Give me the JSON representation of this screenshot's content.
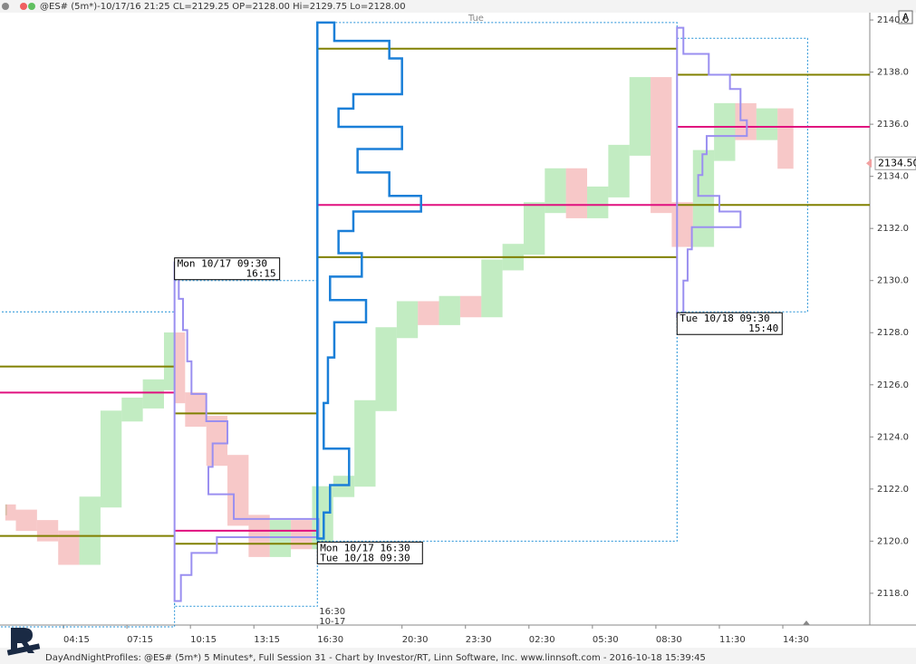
{
  "chart_data": {
    "type": "price",
    "title": "@ES# (5m*)-10/17/16 21:25 CL=2129.25 OP=2128.00 Hi=2129.75 Lo=2128.00",
    "footer": "DayAndNightProfiles: @ES# (5m*) 5 Minutes*, Full Session 31 - Chart by Investor/RT, Linn Software, Inc. www.linnsoft.com - 2016-10-18 15:39:45",
    "button": "A",
    "xlim": [
      1.25,
      42.36
    ],
    "ylim": [
      2116.78,
      2140.28
    ],
    "xticks": [
      {
        "value": 4.25,
        "label": "04:15"
      },
      {
        "value": 7.25,
        "label": "07:15"
      },
      {
        "value": 10.25,
        "label": "10:15"
      },
      {
        "value": 13.25,
        "label": "13:15"
      },
      {
        "value": 16.25,
        "label": "16:30"
      },
      {
        "value": 20.25,
        "label": "20:30"
      },
      {
        "value": 23.25,
        "label": "23:30"
      },
      {
        "value": 26.25,
        "label": "02:30"
      },
      {
        "value": 29.25,
        "label": "05:30"
      },
      {
        "value": 32.25,
        "label": "08:30"
      },
      {
        "value": 35.25,
        "label": "11:30"
      },
      {
        "value": 38.25,
        "label": "14:30"
      }
    ],
    "session_marker": {
      "value": 16.25,
      "label": "16:30",
      "date": "10-17"
    },
    "day_marker": {
      "value": 23.75,
      "label": "Tue"
    },
    "yticks": [
      {
        "value": 2118,
        "label": "2118.0"
      },
      {
        "value": 2120,
        "label": "2120.0"
      },
      {
        "value": 2122,
        "label": "2122.0"
      },
      {
        "value": 2124,
        "label": "2124.0"
      },
      {
        "value": 2126,
        "label": "2126.0"
      },
      {
        "value": 2128,
        "label": "2128.0"
      },
      {
        "value": 2130,
        "label": "2130.0"
      },
      {
        "value": 2132,
        "label": "2132.0"
      },
      {
        "value": 2134,
        "label": "2134.0"
      },
      {
        "value": 2136,
        "label": "2136.0"
      },
      {
        "value": 2138,
        "label": "2138.0"
      },
      {
        "value": 2140,
        "label": "2140.0"
      }
    ],
    "last_price": {
      "value": 2134.5,
      "label": "2134.50",
      "color": "#f2a0a0"
    },
    "up_color": "#8fdc8f",
    "down_color": "#f09a9a",
    "x": [
      1.5,
      2,
      3,
      4,
      5,
      6,
      7,
      8,
      9,
      9.5,
      10,
      11,
      12,
      13,
      14,
      15,
      16,
      17,
      18,
      19,
      20,
      21,
      22,
      23,
      24,
      25,
      26,
      27,
      28,
      29,
      30,
      31,
      32,
      33,
      34,
      35,
      36,
      37,
      38,
      38.75
    ],
    "values": [
      2121.2,
      2121.0,
      2120.6,
      2120.2,
      2119.3,
      2121.5,
      2124.8,
      2125.3,
      2126.0,
      2127.8,
      2125.5,
      2124.6,
      2123.1,
      2120.8,
      2119.6,
      2120.6,
      2119.9,
      2121.9,
      2122.3,
      2125.2,
      2128.0,
      2129.0,
      2128.5,
      2129.2,
      2128.8,
      2130.6,
      2131.2,
      2132.8,
      2134.1,
      2132.6,
      2133.4,
      2135.0,
      2137.6,
      2132.8,
      2131.5,
      2134.8,
      2136.6,
      2135.6,
      2136.4,
      2134.5
    ],
    "profiles": [
      {
        "x_end": 9.5,
        "top": 2128.8,
        "levels": [
          {
            "value": 2126.7,
            "color": "#808000"
          },
          {
            "value": 2125.7,
            "color": "#e0107f"
          },
          {
            "value": 2120.2,
            "color": "#808000"
          }
        ]
      },
      {
        "x_start": 9.5,
        "x_end": 16.25,
        "top": 2130.0,
        "bottom": 2117.5,
        "label": [
          "Mon 10/17 09:30",
          "16:15"
        ],
        "label_position": "top",
        "levels": [
          {
            "value": 2124.9,
            "color": "#808000"
          },
          {
            "value": 2120.4,
            "color": "#e0107f"
          },
          {
            "value": 2119.9,
            "color": "#808000"
          }
        ],
        "outline": {
          "color": "#9a8ff0",
          "prices": [
            2130.0,
            2128.6,
            2127.6,
            2126.2,
            2125.1,
            2124.1,
            2123.4,
            2122.3,
            2121.3,
            2120.4,
            2119.9,
            2119.2,
            2118.2
          ],
          "widths": [
            0.2,
            0.4,
            0.6,
            0.8,
            1.5,
            2.5,
            1.8,
            1.6,
            2.8,
            6.8,
            2.0,
            0.8,
            0.3
          ]
        }
      },
      {
        "x_start": 16.25,
        "x_end": 33.25,
        "top": 2139.9,
        "bottom": 2120.0,
        "label": [
          "Mon 10/17 16:30",
          "Tue 10/18 09:30"
        ],
        "label_position": "bottom",
        "levels": [
          {
            "value": 2138.9,
            "color": "#808000"
          },
          {
            "value": 2132.9,
            "color": "#e0107f"
          },
          {
            "value": 2130.9,
            "color": "#808000"
          }
        ],
        "outline": {
          "color": "#1a7fd8",
          "prices": [
            2139.55,
            2138.85,
            2138.2,
            2137.5,
            2136.8,
            2136.4,
            2135.4,
            2134.7,
            2133.6,
            2132.9,
            2132.4,
            2131.4,
            2130.7,
            2129.6,
            2128.9,
            2127.9,
            2126.2,
            2124.4,
            2122.7,
            2121.6,
            2120.6
          ],
          "widths": [
            0.8,
            3.4,
            4.0,
            4.0,
            1.7,
            1.0,
            4.0,
            1.9,
            3.4,
            4.9,
            1.7,
            1.0,
            2.1,
            0.6,
            2.3,
            0.8,
            0.5,
            0.3,
            1.5,
            0.6,
            0.3
          ]
        }
      },
      {
        "x_start": 33.25,
        "x_end": 39.42,
        "top": 2139.3,
        "bottom": 2128.8,
        "label": [
          "Tue 10/18 09:30",
          "15:40"
        ],
        "label_position": "bottom",
        "levels": [
          {
            "value": 2137.9,
            "color": "#808000"
          },
          {
            "value": 2135.9,
            "color": "#e0107f"
          },
          {
            "value": 2132.9,
            "color": "#808000"
          }
        ],
        "outline": {
          "color": "#9a8ff0",
          "prices": [
            2139.2,
            2138.2,
            2137.6,
            2137.1,
            2136.4,
            2135.9,
            2135.2,
            2134.5,
            2133.6,
            2132.9,
            2132.4,
            2131.7,
            2130.7,
            2129.3
          ],
          "widths": [
            0.3,
            1.5,
            2.5,
            3.0,
            3.0,
            3.3,
            1.4,
            1.2,
            1.0,
            2.0,
            3.0,
            0.7,
            0.5,
            0.3
          ]
        }
      }
    ]
  }
}
